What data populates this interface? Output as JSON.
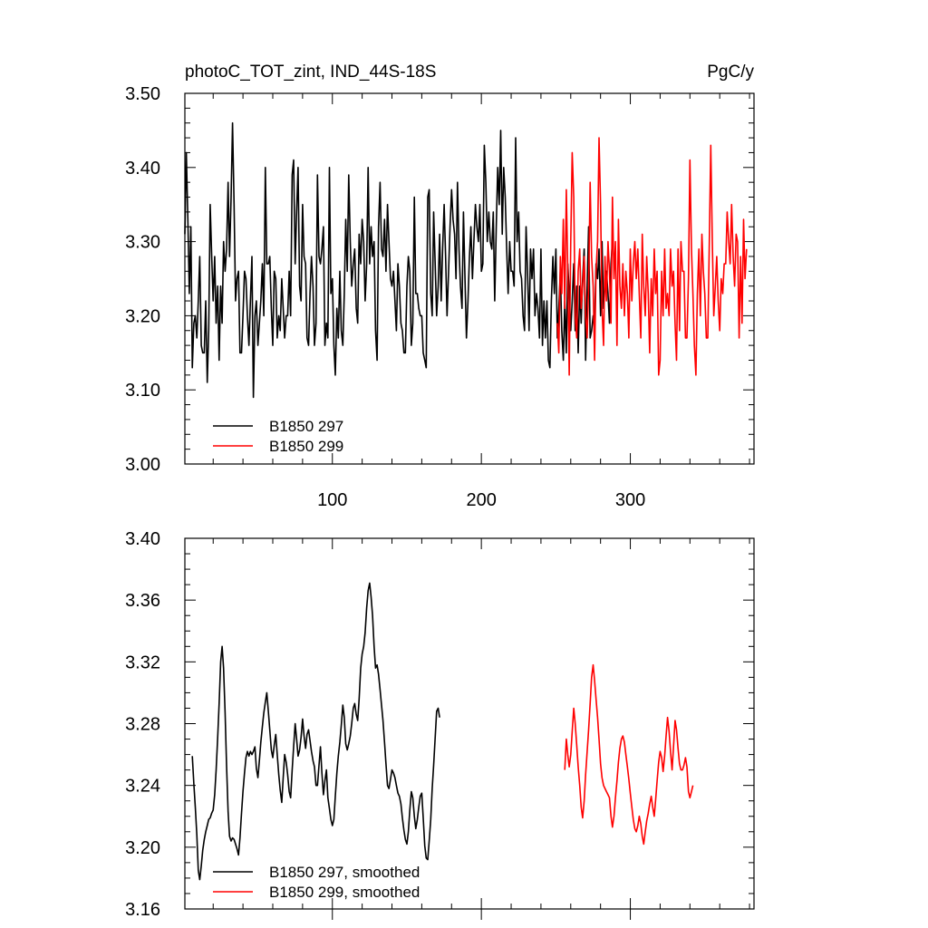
{
  "chart_data": [
    {
      "type": "line",
      "title_left": "photoC_TOT_zint, IND_44S-18S",
      "title_right": "PgC/y",
      "xlabel": "",
      "ylabel": "",
      "xlim": [
        1,
        383
      ],
      "ylim": [
        3.0,
        3.5
      ],
      "yticks": [
        "3.00",
        "3.10",
        "3.20",
        "3.30",
        "3.40",
        "3.50"
      ],
      "xticks": [
        "100",
        "200",
        "300"
      ],
      "legend_location": "bottom-left",
      "series": [
        {
          "name": "B1850 297",
          "color": "#000000",
          "x_start": 1,
          "values": [
            3.31,
            3.42,
            3.33,
            3.23,
            3.32,
            3.13,
            3.19,
            3.2,
            3.17,
            3.22,
            3.28,
            3.16,
            3.15,
            3.15,
            3.22,
            3.11,
            3.18,
            3.35,
            3.28,
            3.22,
            3.28,
            3.19,
            3.24,
            3.14,
            3.24,
            3.19,
            3.3,
            3.26,
            3.29,
            3.38,
            3.28,
            3.36,
            3.46,
            3.35,
            3.22,
            3.25,
            3.26,
            3.15,
            3.15,
            3.2,
            3.26,
            3.25,
            3.2,
            3.16,
            3.22,
            3.28,
            3.09,
            3.2,
            3.22,
            3.16,
            3.19,
            3.22,
            3.27,
            3.2,
            3.4,
            3.27,
            3.27,
            3.28,
            3.21,
            3.16,
            3.26,
            3.25,
            3.17,
            3.2,
            3.18,
            3.25,
            3.21,
            3.17,
            3.2,
            3.2,
            3.26,
            3.2,
            3.39,
            3.41,
            3.27,
            3.34,
            3.4,
            3.24,
            3.22,
            3.35,
            3.28,
            3.27,
            3.17,
            3.16,
            3.23,
            3.28,
            3.24,
            3.16,
            3.19,
            3.39,
            3.28,
            3.27,
            3.29,
            3.32,
            3.16,
            3.19,
            3.17,
            3.4,
            3.23,
            3.25,
            3.16,
            3.12,
            3.21,
            3.17,
            3.26,
            3.18,
            3.16,
            3.23,
            3.33,
            3.26,
            3.39,
            3.3,
            3.24,
            3.27,
            3.29,
            3.21,
            3.19,
            3.31,
            3.27,
            3.33,
            3.3,
            3.22,
            3.27,
            3.4,
            3.27,
            3.32,
            3.28,
            3.3,
            3.18,
            3.14,
            3.32,
            3.38,
            3.29,
            3.28,
            3.33,
            3.26,
            3.35,
            3.3,
            3.25,
            3.24,
            3.26,
            3.22,
            3.18,
            3.27,
            3.24,
            3.19,
            3.18,
            3.15,
            3.15,
            3.24,
            3.28,
            3.26,
            3.16,
            3.19,
            3.36,
            3.23,
            3.23,
            3.21,
            3.2,
            3.2,
            3.15,
            3.14,
            3.13,
            3.36,
            3.37,
            3.23,
            3.2,
            3.34,
            3.27,
            3.2,
            3.24,
            3.31,
            3.22,
            3.29,
            3.35,
            3.28,
            3.2,
            3.26,
            3.32,
            3.37,
            3.33,
            3.31,
            3.25,
            3.38,
            3.29,
            3.24,
            3.21,
            3.34,
            3.25,
            3.17,
            3.22,
            3.28,
            3.32,
            3.25,
            3.3,
            3.35,
            3.32,
            3.3,
            3.35,
            3.26,
            3.27,
            3.43,
            3.38,
            3.3,
            3.34,
            3.3,
            3.29,
            3.34,
            3.22,
            3.32,
            3.4,
            3.35,
            3.45,
            3.31,
            3.4,
            3.36,
            3.29,
            3.23,
            3.3,
            3.26,
            3.26,
            3.24,
            3.44,
            3.3,
            3.34,
            3.26,
            3.25,
            3.2,
            3.18,
            3.32,
            3.26,
            3.18,
            3.29,
            3.25,
            3.29,
            3.2,
            3.23,
            3.21,
            3.17,
            3.29,
            3.16,
            3.22,
            3.17,
            3.22,
            3.14,
            3.13,
            3.22,
            3.28,
            3.23,
            3.29,
            3.17,
            3.21,
            3.26,
            3.18,
            3.14,
            3.22,
            3.15,
            3.27,
            3.23,
            3.18,
            3.22,
            3.27,
            3.18,
            3.24,
            3.15,
            3.24,
            3.19,
            3.25,
            3.29,
            3.14,
            3.24,
            3.32,
            3.17,
            3.18,
            3.2,
            3.19,
            3.27,
            3.25,
            3.29,
            3.2,
            3.3,
            3.21,
            3.24,
            3.26,
            3.23,
            3.19,
            3.27,
            3.3
          ]
        },
        {
          "name": "B1850 299",
          "color": "#ff0000",
          "x_start": 251,
          "values": [
            3.19,
            3.15,
            3.28,
            3.23,
            3.33,
            3.21,
            3.37,
            3.26,
            3.12,
            3.3,
            3.42,
            3.36,
            3.2,
            3.17,
            3.26,
            3.29,
            3.21,
            3.24,
            3.28,
            3.2,
            3.17,
            3.24,
            3.38,
            3.28,
            3.24,
            3.14,
            3.26,
            3.3,
            3.44,
            3.35,
            3.21,
            3.16,
            3.28,
            3.22,
            3.3,
            3.26,
            3.19,
            3.36,
            3.25,
            3.3,
            3.16,
            3.33,
            3.24,
            3.21,
            3.27,
            3.2,
            3.26,
            3.23,
            3.17,
            3.29,
            3.22,
            3.27,
            3.3,
            3.25,
            3.29,
            3.23,
            3.17,
            3.31,
            3.24,
            3.2,
            3.28,
            3.23,
            3.15,
            3.25,
            3.2,
            3.29,
            3.23,
            3.26,
            3.12,
            3.14,
            3.26,
            3.2,
            3.29,
            3.21,
            3.23,
            3.2,
            3.29,
            3.24,
            3.26,
            3.19,
            3.14,
            3.29,
            3.18,
            3.3,
            3.26,
            3.26,
            3.17,
            3.17,
            3.25,
            3.41,
            3.29,
            3.23,
            3.16,
            3.12,
            3.23,
            3.29,
            3.2,
            3.31,
            3.26,
            3.23,
            3.17,
            3.17,
            3.3,
            3.43,
            3.3,
            3.2,
            3.24,
            3.28,
            3.22,
            3.18,
            3.25,
            3.23,
            3.27,
            3.27,
            3.34,
            3.3,
            3.27,
            3.35,
            3.28,
            3.24,
            3.31,
            3.3,
            3.17,
            3.28,
            3.19,
            3.33,
            3.25,
            3.29
          ]
        }
      ]
    },
    {
      "type": "line",
      "title_left": "",
      "title_right": "",
      "xlabel": "",
      "ylabel": "",
      "xlim": [
        1,
        383
      ],
      "ylim": [
        3.16,
        3.4
      ],
      "yticks": [
        "3.16",
        "3.20",
        "3.24",
        "3.28",
        "3.32",
        "3.36",
        "3.40"
      ],
      "xticks": [],
      "legend_location": "bottom-left",
      "series": [
        {
          "name": "B1850 297, smoothed",
          "color": "#000000",
          "x_start": 6,
          "values": [
            3.259,
            3.241,
            3.226,
            3.208,
            3.185,
            3.179,
            3.188,
            3.198,
            3.205,
            3.21,
            3.214,
            3.218,
            3.219,
            3.222,
            3.224,
            3.234,
            3.25,
            3.271,
            3.293,
            3.32,
            3.33,
            3.316,
            3.287,
            3.253,
            3.223,
            3.207,
            3.204,
            3.206,
            3.205,
            3.202,
            3.199,
            3.195,
            3.206,
            3.222,
            3.236,
            3.248,
            3.258,
            3.262,
            3.259,
            3.262,
            3.26,
            3.262,
            3.265,
            3.251,
            3.245,
            3.256,
            3.268,
            3.278,
            3.287,
            3.294,
            3.3,
            3.288,
            3.276,
            3.263,
            3.258,
            3.266,
            3.273,
            3.26,
            3.247,
            3.237,
            3.229,
            3.245,
            3.26,
            3.255,
            3.247,
            3.236,
            3.232,
            3.25,
            3.265,
            3.28,
            3.27,
            3.259,
            3.263,
            3.271,
            3.283,
            3.272,
            3.264,
            3.273,
            3.276,
            3.269,
            3.262,
            3.256,
            3.252,
            3.24,
            3.24,
            3.253,
            3.265,
            3.248,
            3.234,
            3.243,
            3.25,
            3.232,
            3.225,
            3.218,
            3.214,
            3.218,
            3.233,
            3.248,
            3.259,
            3.268,
            3.279,
            3.292,
            3.284,
            3.267,
            3.263,
            3.267,
            3.272,
            3.28,
            3.29,
            3.293,
            3.286,
            3.282,
            3.296,
            3.316,
            3.325,
            3.33,
            3.339,
            3.355,
            3.366,
            3.371,
            3.362,
            3.35,
            3.33,
            3.316,
            3.318,
            3.312,
            3.302,
            3.292,
            3.282,
            3.268,
            3.254,
            3.24,
            3.238,
            3.244,
            3.25,
            3.248,
            3.245,
            3.24,
            3.235,
            3.233,
            3.228,
            3.219,
            3.211,
            3.205,
            3.202,
            3.21,
            3.224,
            3.236,
            3.232,
            3.22,
            3.212,
            3.218,
            3.226,
            3.233,
            3.235,
            3.219,
            3.201,
            3.193,
            3.192,
            3.204,
            3.218,
            3.238,
            3.253,
            3.271,
            3.288,
            3.29,
            3.284
          ]
        },
        {
          "name": "B1850 299, smoothed",
          "color": "#ff0000",
          "x_start": 256,
          "values": [
            3.25,
            3.27,
            3.26,
            3.252,
            3.26,
            3.275,
            3.29,
            3.28,
            3.266,
            3.252,
            3.24,
            3.226,
            3.219,
            3.23,
            3.247,
            3.262,
            3.276,
            3.293,
            3.31,
            3.318,
            3.308,
            3.296,
            3.284,
            3.27,
            3.254,
            3.245,
            3.24,
            3.238,
            3.236,
            3.234,
            3.232,
            3.22,
            3.213,
            3.22,
            3.232,
            3.243,
            3.255,
            3.264,
            3.27,
            3.272,
            3.268,
            3.26,
            3.252,
            3.244,
            3.235,
            3.226,
            3.218,
            3.212,
            3.21,
            3.214,
            3.22,
            3.215,
            3.207,
            3.202,
            3.21,
            3.217,
            3.222,
            3.228,
            3.233,
            3.226,
            3.22,
            3.231,
            3.243,
            3.255,
            3.262,
            3.258,
            3.249,
            3.259,
            3.272,
            3.284,
            3.275,
            3.262,
            3.25,
            3.265,
            3.282,
            3.276,
            3.264,
            3.254,
            3.25,
            3.25,
            3.253,
            3.258,
            3.252,
            3.236,
            3.232,
            3.236,
            3.24
          ]
        }
      ]
    }
  ]
}
